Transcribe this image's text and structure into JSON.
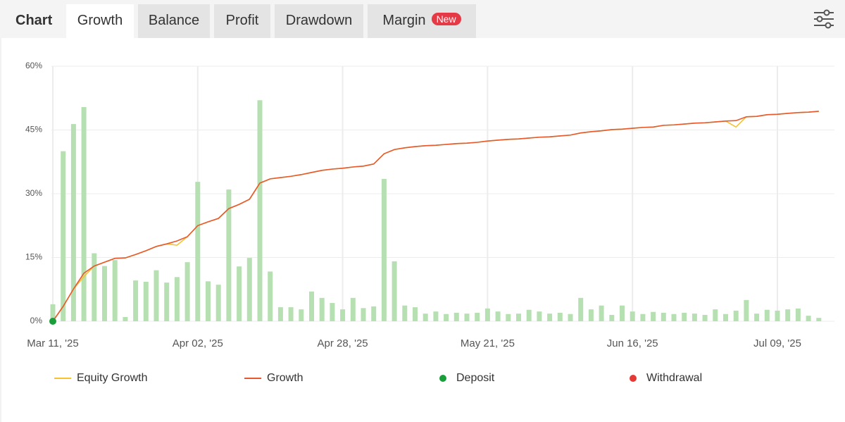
{
  "tabs": {
    "label": "Chart",
    "items": [
      "Growth",
      "Balance",
      "Profit",
      "Drawdown",
      "Margin"
    ],
    "active": 0,
    "badge": "New"
  },
  "chart_data": {
    "type": "bar-line",
    "categories": [
      "Mar 11, '25",
      null,
      null,
      null,
      null,
      null,
      null,
      null,
      null,
      null,
      null,
      null,
      null,
      null,
      "Apr 02, '25",
      null,
      null,
      null,
      null,
      null,
      null,
      null,
      null,
      null,
      null,
      null,
      null,
      null,
      "Apr 28, '25",
      null,
      null,
      null,
      null,
      null,
      null,
      null,
      null,
      null,
      null,
      null,
      null,
      null,
      "May 21, '25",
      null,
      null,
      null,
      null,
      null,
      null,
      null,
      null,
      null,
      null,
      null,
      null,
      null,
      "Jun 16, '25",
      null,
      null,
      null,
      null,
      null,
      null,
      null,
      null,
      null,
      null,
      null,
      null,
      null,
      "Jul 09, '25",
      null,
      null,
      null,
      null
    ],
    "bar_values": [
      4,
      40,
      46.4,
      50.4,
      16,
      13,
      14.4,
      1,
      9.6,
      9.3,
      12,
      9.1,
      10.4,
      13.9,
      32.8,
      9.4,
      8.6,
      31,
      12.9,
      14.9,
      52,
      11.7,
      3.3,
      3.3,
      2.8,
      7,
      5.5,
      4.3,
      2.8,
      5.5,
      3.1,
      3.5,
      33.5,
      14.1,
      3.7,
      3.3,
      1.8,
      2.3,
      1.7,
      2,
      1.8,
      2,
      3,
      2.3,
      1.7,
      1.8,
      2.7,
      2.3,
      1.8,
      2,
      1.7,
      5.5,
      2.8,
      3.7,
      1.5,
      3.7,
      2.3,
      1.7,
      2.2,
      2,
      1.7,
      2,
      1.8,
      1.5,
      2.8,
      1.7,
      2.5,
      5,
      1.8,
      2.7,
      2.5,
      2.8,
      3,
      1.3,
      0.8
    ],
    "bar_color": "#b7e0b2",
    "series": [
      {
        "name": "Equity Growth",
        "kind": "line",
        "color": "#f7c22e",
        "values": [
          0,
          3.5,
          7.6,
          10.5,
          13,
          13.9,
          14.8,
          14.9,
          15.7,
          16.6,
          17.6,
          18.2,
          17.9,
          19.9,
          22.5,
          23.4,
          24.2,
          26.5,
          27.5,
          28.7,
          32.5,
          33.5,
          33.8,
          34.1,
          34.5,
          35,
          35.5,
          35.8,
          36,
          36.3,
          36.5,
          37,
          39.4,
          40.4,
          40.8,
          41.1,
          41.3,
          41.4,
          41.6,
          41.8,
          41.9,
          42.1,
          42.4,
          42.6,
          42.8,
          42.9,
          43.1,
          43.3,
          43.4,
          43.6,
          43.8,
          44.3,
          44.6,
          44.8,
          45.1,
          45.2,
          45.4,
          45.6,
          45.7,
          46.1,
          46.2,
          46.4,
          46.6,
          46.7,
          46.9,
          47.1,
          45.7,
          48.1,
          48.2,
          48.6,
          48.7,
          48.9,
          49.1,
          49.2,
          49.4
        ]
      },
      {
        "name": "Growth",
        "kind": "line",
        "color": "#e8582e",
        "values": [
          0,
          3.5,
          7.6,
          11.3,
          13,
          13.9,
          14.8,
          14.9,
          15.7,
          16.6,
          17.6,
          18.2,
          18.9,
          19.9,
          22.5,
          23.4,
          24.2,
          26.5,
          27.5,
          28.7,
          32.5,
          33.5,
          33.8,
          34.1,
          34.5,
          35,
          35.5,
          35.8,
          36,
          36.3,
          36.5,
          37,
          39.4,
          40.4,
          40.8,
          41.1,
          41.3,
          41.4,
          41.6,
          41.8,
          41.9,
          42.1,
          42.4,
          42.6,
          42.8,
          42.9,
          43.1,
          43.3,
          43.4,
          43.6,
          43.8,
          44.3,
          44.6,
          44.8,
          45.1,
          45.2,
          45.4,
          45.6,
          45.7,
          46.1,
          46.2,
          46.4,
          46.6,
          46.7,
          46.9,
          47.1,
          47.2,
          48.1,
          48.2,
          48.6,
          48.7,
          48.9,
          49.1,
          49.2,
          49.4
        ]
      },
      {
        "name": "Deposit",
        "kind": "point",
        "color": "#1a9e3a",
        "values": [
          0,
          null,
          null,
          null,
          null,
          null,
          null,
          null,
          null,
          null,
          null,
          null,
          null,
          null,
          null,
          null,
          null,
          null,
          null,
          null,
          null,
          null,
          null,
          null,
          null,
          null,
          null,
          null,
          null,
          null,
          null,
          null,
          null,
          null,
          null,
          null,
          null,
          null,
          null,
          null,
          null,
          null,
          null,
          null,
          null,
          null,
          null,
          null,
          null,
          null,
          null,
          null,
          null,
          null,
          null,
          null,
          null,
          null,
          null,
          null,
          null,
          null,
          null,
          null,
          null,
          null,
          null,
          null,
          null,
          null,
          null,
          null,
          null,
          null,
          null
        ]
      },
      {
        "name": "Withdrawal",
        "kind": "point",
        "color": "#e53935",
        "values": [
          null,
          null,
          null,
          null,
          null,
          null,
          null,
          null,
          null,
          null,
          null,
          null,
          null,
          null,
          null,
          null,
          null,
          null,
          null,
          null,
          null,
          null,
          null,
          null,
          null,
          null,
          null,
          null,
          null,
          null,
          null,
          null,
          null,
          null,
          null,
          null,
          null,
          null,
          null,
          null,
          null,
          null,
          null,
          null,
          null,
          null,
          null,
          null,
          null,
          null,
          null,
          null,
          null,
          null,
          null,
          null,
          null,
          null,
          null,
          null,
          null,
          null,
          null,
          null,
          null,
          null,
          null,
          null,
          null,
          null,
          null,
          null,
          null,
          null,
          null
        ]
      }
    ],
    "ylim": [
      0,
      60
    ],
    "yticks": [
      {
        "value": 0,
        "label": "0%"
      },
      {
        "value": 15,
        "label": "15%"
      },
      {
        "value": 30,
        "label": "30%"
      },
      {
        "value": 45,
        "label": "45%"
      },
      {
        "value": 60,
        "label": "60%"
      }
    ],
    "grid": true
  }
}
